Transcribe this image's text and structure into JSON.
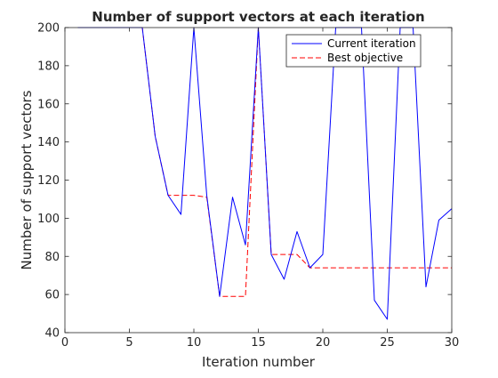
{
  "chart_data": {
    "type": "line",
    "title": "Number of support vectors at each iteration",
    "xlabel": "Iteration number",
    "ylabel": "Number of support vectors",
    "xlim": [
      0,
      30
    ],
    "ylim": [
      40,
      200
    ],
    "xticks": [
      0,
      5,
      10,
      15,
      20,
      25,
      30
    ],
    "yticks": [
      40,
      60,
      80,
      100,
      120,
      140,
      160,
      180,
      200
    ],
    "grid": false,
    "legend_position": "top-right",
    "series": [
      {
        "name": "Current iteration",
        "color": "#0000ff",
        "style": "solid",
        "x": [
          1,
          2,
          3,
          4,
          5,
          6,
          7,
          8,
          9,
          10,
          11,
          12,
          13,
          14,
          15,
          16,
          17,
          18,
          19,
          20,
          21,
          22,
          23,
          24,
          25,
          26,
          27,
          28,
          29,
          30
        ],
        "y": [
          200,
          200,
          200,
          200,
          200,
          200,
          143,
          112,
          102,
          200,
          112,
          59,
          111,
          86,
          200,
          81,
          68,
          93,
          74,
          81,
          200,
          200,
          200,
          57,
          47,
          200,
          200,
          64,
          99,
          105
        ]
      },
      {
        "name": "Best objective",
        "color": "#ff0000",
        "style": "dashed",
        "x": [
          1,
          2,
          3,
          4,
          5,
          6,
          7,
          8,
          9,
          10,
          11,
          12,
          13,
          14,
          15,
          16,
          17,
          18,
          19,
          20,
          21,
          22,
          23,
          24,
          25,
          26,
          27,
          28,
          29,
          30
        ],
        "y": [
          200,
          200,
          200,
          200,
          200,
          200,
          143,
          112,
          112,
          112,
          111,
          59,
          59,
          59,
          200,
          81,
          81,
          81,
          74,
          74,
          74,
          74,
          74,
          74,
          74,
          74,
          74,
          74,
          74,
          74
        ]
      }
    ]
  }
}
